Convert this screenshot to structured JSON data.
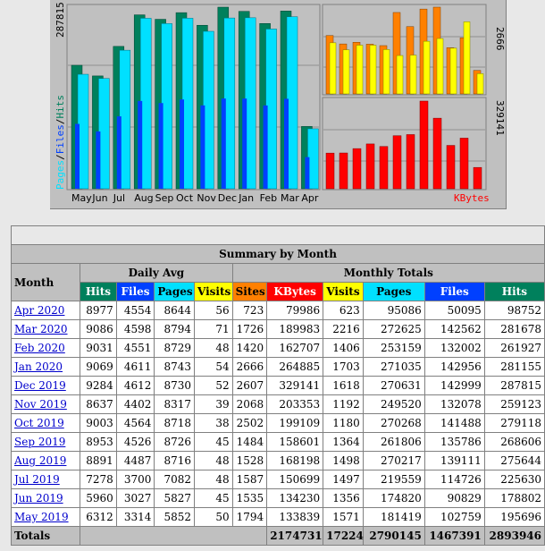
{
  "colors": {
    "hits": "#00805c",
    "files": "#0040ff",
    "pages": "#00e0ff",
    "visits": "#ffff00",
    "sites": "#ff8000",
    "kbytes": "#ff0000"
  },
  "chart": {
    "left_max_label": "287815",
    "right_top_max": "2666",
    "right_bottom_max": "329141",
    "left_axis": {
      "pages": "Pages",
      "files": "Files",
      "hits": "Hits",
      "sep": "/"
    },
    "kbytes_label": "KBytes",
    "months": [
      "May",
      "Jun",
      "Jul",
      "Aug",
      "Sep",
      "Oct",
      "Nov",
      "Dec",
      "Jan",
      "Feb",
      "Mar",
      "Apr"
    ]
  },
  "summary": {
    "title": "Summary by Month",
    "month_header": "Month",
    "daily_avg": "Daily Avg",
    "monthly_totals": "Monthly Totals",
    "cols": {
      "hits": "Hits",
      "files": "Files",
      "pages": "Pages",
      "visits": "Visits",
      "sites": "Sites",
      "kbytes": "KBytes",
      "visits2": "Visits",
      "pages2": "Pages",
      "files2": "Files",
      "hits2": "Hits"
    },
    "rows": [
      {
        "month": "Apr 2020",
        "d_hits": "8977",
        "d_files": "4554",
        "d_pages": "8644",
        "d_visits": "56",
        "sites": "723",
        "kbytes": "79986",
        "visits": "623",
        "pages": "95086",
        "files": "50095",
        "hits": "98752"
      },
      {
        "month": "Mar 2020",
        "d_hits": "9086",
        "d_files": "4598",
        "d_pages": "8794",
        "d_visits": "71",
        "sites": "1726",
        "kbytes": "189983",
        "visits": "2216",
        "pages": "272625",
        "files": "142562",
        "hits": "281678"
      },
      {
        "month": "Feb 2020",
        "d_hits": "9031",
        "d_files": "4551",
        "d_pages": "8729",
        "d_visits": "48",
        "sites": "1420",
        "kbytes": "162707",
        "visits": "1406",
        "pages": "253159",
        "files": "132002",
        "hits": "261927"
      },
      {
        "month": "Jan 2020",
        "d_hits": "9069",
        "d_files": "4611",
        "d_pages": "8743",
        "d_visits": "54",
        "sites": "2666",
        "kbytes": "264885",
        "visits": "1703",
        "pages": "271035",
        "files": "142956",
        "hits": "281155"
      },
      {
        "month": "Dec 2019",
        "d_hits": "9284",
        "d_files": "4612",
        "d_pages": "8730",
        "d_visits": "52",
        "sites": "2607",
        "kbytes": "329141",
        "visits": "1618",
        "pages": "270631",
        "files": "142999",
        "hits": "287815"
      },
      {
        "month": "Nov 2019",
        "d_hits": "8637",
        "d_files": "4402",
        "d_pages": "8317",
        "d_visits": "39",
        "sites": "2068",
        "kbytes": "203353",
        "visits": "1192",
        "pages": "249520",
        "files": "132078",
        "hits": "259123"
      },
      {
        "month": "Oct 2019",
        "d_hits": "9003",
        "d_files": "4564",
        "d_pages": "8718",
        "d_visits": "38",
        "sites": "2502",
        "kbytes": "199109",
        "visits": "1180",
        "pages": "270268",
        "files": "141488",
        "hits": "279118"
      },
      {
        "month": "Sep 2019",
        "d_hits": "8953",
        "d_files": "4526",
        "d_pages": "8726",
        "d_visits": "45",
        "sites": "1484",
        "kbytes": "158601",
        "visits": "1364",
        "pages": "261806",
        "files": "135786",
        "hits": "268606"
      },
      {
        "month": "Aug 2019",
        "d_hits": "8891",
        "d_files": "4487",
        "d_pages": "8716",
        "d_visits": "48",
        "sites": "1528",
        "kbytes": "168198",
        "visits": "1498",
        "pages": "270217",
        "files": "139111",
        "hits": "275644"
      },
      {
        "month": "Jul 2019",
        "d_hits": "7278",
        "d_files": "3700",
        "d_pages": "7082",
        "d_visits": "48",
        "sites": "1587",
        "kbytes": "150699",
        "visits": "1497",
        "pages": "219559",
        "files": "114726",
        "hits": "225630"
      },
      {
        "month": "Jun 2019",
        "d_hits": "5960",
        "d_files": "3027",
        "d_pages": "5827",
        "d_visits": "45",
        "sites": "1535",
        "kbytes": "134230",
        "visits": "1356",
        "pages": "174820",
        "files": "90829",
        "hits": "178802"
      },
      {
        "month": "May 2019",
        "d_hits": "6312",
        "d_files": "3314",
        "d_pages": "5852",
        "d_visits": "50",
        "sites": "1794",
        "kbytes": "133839",
        "visits": "1571",
        "pages": "181419",
        "files": "102759",
        "hits": "195696"
      }
    ],
    "totals": {
      "label": "Totals",
      "kbytes": "2174731",
      "visits": "17224",
      "pages": "2790145",
      "files": "1467391",
      "hits": "2893946"
    }
  },
  "chart_data": {
    "type": "bar",
    "categories": [
      "May",
      "Jun",
      "Jul",
      "Aug",
      "Sep",
      "Oct",
      "Nov",
      "Dec",
      "Jan",
      "Feb",
      "Mar",
      "Apr"
    ],
    "series": [
      {
        "name": "Hits",
        "values": [
          195696,
          178802,
          225630,
          275644,
          268606,
          279118,
          259123,
          287815,
          281155,
          261927,
          281678,
          98752
        ]
      },
      {
        "name": "Files",
        "values": [
          102759,
          90829,
          114726,
          139111,
          135786,
          141488,
          132078,
          142999,
          142956,
          132002,
          142562,
          50095
        ]
      },
      {
        "name": "Pages",
        "values": [
          181419,
          174820,
          219559,
          270217,
          261806,
          270268,
          249520,
          270631,
          271035,
          253159,
          272625,
          95086
        ]
      },
      {
        "name": "Visits",
        "values": [
          1571,
          1356,
          1497,
          1498,
          1364,
          1180,
          1192,
          1618,
          1703,
          1406,
          2216,
          623
        ]
      },
      {
        "name": "Sites",
        "values": [
          1794,
          1535,
          1587,
          1528,
          1484,
          2502,
          2068,
          2607,
          2666,
          1420,
          1726,
          723
        ]
      },
      {
        "name": "KBytes",
        "values": [
          133839,
          134230,
          150699,
          168198,
          158601,
          199109,
          203353,
          329141,
          264885,
          162707,
          189983,
          79986
        ]
      }
    ]
  }
}
